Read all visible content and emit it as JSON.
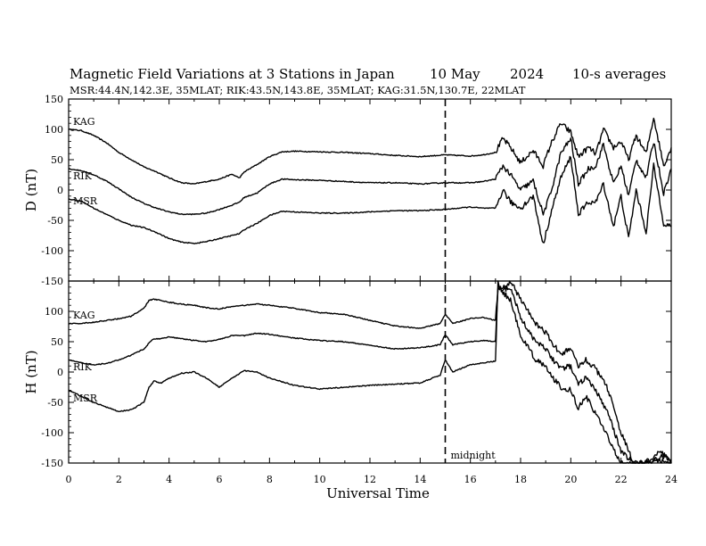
{
  "header": {
    "title": "Magnetic Field Variations at 3 Stations in Japan",
    "date": "10 May",
    "year": "2024",
    "averaging": "10-s averages",
    "stations_line": "MSR:44.4N,142.3E, 35MLAT;  RIK:43.5N,143.8E, 35MLAT;  KAG:31.5N,130.7E, 22MLAT"
  },
  "chart_data": [
    {
      "type": "line",
      "panel": "D",
      "ylabel": "D (nT)",
      "xlabel": "Universal Time",
      "xlim": [
        0,
        24
      ],
      "ylim": [
        -150,
        150
      ],
      "yticks": [
        "150",
        "100",
        "50",
        "0",
        "-50",
        "-100",
        "-150"
      ],
      "x": [
        0,
        0.5,
        1,
        1.5,
        2,
        2.5,
        3,
        3.5,
        4,
        4.5,
        5,
        5.5,
        6,
        6.5,
        6.8,
        7,
        7.5,
        8,
        8.5,
        9,
        10,
        11,
        12,
        13,
        14,
        15,
        16,
        16.5,
        17,
        17.3,
        17.6,
        18,
        18.5,
        18.9,
        19.2,
        19.6,
        20,
        20.3,
        20.7,
        21,
        21.3,
        21.7,
        22,
        22.3,
        22.6,
        23,
        23.3,
        23.7,
        24
      ],
      "series": [
        {
          "name": "KAG",
          "values": [
            100,
            98,
            90,
            78,
            62,
            50,
            38,
            30,
            20,
            12,
            10,
            14,
            18,
            26,
            20,
            30,
            42,
            55,
            63,
            64,
            63,
            62,
            60,
            57,
            55,
            58,
            56,
            58,
            62,
            85,
            70,
            45,
            65,
            40,
            75,
            110,
            95,
            55,
            70,
            60,
            100,
            70,
            80,
            50,
            90,
            60,
            120,
            40,
            70
          ]
        },
        {
          "name": "RIK",
          "values": [
            35,
            32,
            25,
            15,
            2,
            -12,
            -22,
            -30,
            -36,
            -40,
            -40,
            -38,
            -32,
            -25,
            -20,
            -12,
            -5,
            10,
            18,
            17,
            16,
            14,
            12,
            12,
            10,
            12,
            12,
            14,
            18,
            40,
            25,
            0,
            15,
            -40,
            -5,
            60,
            85,
            10,
            35,
            40,
            75,
            10,
            40,
            -10,
            50,
            20,
            80,
            -5,
            35
          ]
        },
        {
          "name": "MSR",
          "values": [
            -15,
            -18,
            -30,
            -40,
            -50,
            -58,
            -62,
            -70,
            -80,
            -86,
            -88,
            -85,
            -80,
            -75,
            -72,
            -65,
            -55,
            -42,
            -35,
            -36,
            -38,
            -38,
            -36,
            -34,
            -34,
            -32,
            -28,
            -30,
            -30,
            0,
            -20,
            -30,
            -10,
            -90,
            -40,
            20,
            55,
            -40,
            -20,
            -20,
            10,
            -60,
            -10,
            -80,
            0,
            -70,
            40,
            -55,
            -60
          ]
        }
      ],
      "series_order_note": ""
    },
    {
      "type": "line",
      "panel": "H",
      "ylabel": "H (nT)",
      "xlabel": "Universal Time",
      "xlim": [
        0,
        24
      ],
      "ylim": [
        -150,
        150
      ],
      "yticks": [
        "150",
        "100",
        "50",
        "0",
        "-50",
        "-100",
        "-150"
      ],
      "xticks": [
        "0",
        "2",
        "4",
        "6",
        "8",
        "10",
        "12",
        "14",
        "16",
        "18",
        "20",
        "22",
        "24"
      ],
      "x": [
        0,
        0.5,
        1,
        1.5,
        2,
        2.5,
        3,
        3.2,
        3.4,
        3.7,
        4,
        4.5,
        5,
        5.5,
        6,
        6.5,
        7,
        7.5,
        8,
        9,
        10,
        11,
        12,
        13,
        14,
        14.8,
        15,
        15.3,
        16,
        16.5,
        17,
        17.1,
        17.3,
        17.6,
        18,
        18.3,
        18.6,
        19,
        19.3,
        19.6,
        20,
        20.3,
        20.6,
        21,
        21.5,
        22,
        22.5,
        22.9,
        23.2,
        23.5,
        23.8,
        24
      ],
      "series": [
        {
          "name": "KAG",
          "values": [
            80,
            80,
            82,
            85,
            88,
            92,
            105,
            118,
            120,
            118,
            115,
            112,
            110,
            106,
            104,
            108,
            110,
            112,
            110,
            105,
            98,
            95,
            85,
            76,
            72,
            80,
            95,
            80,
            88,
            90,
            85,
            140,
            140,
            150,
            120,
            100,
            80,
            65,
            45,
            30,
            40,
            10,
            20,
            5,
            -30,
            -100,
            -150,
            -150,
            -150,
            -140,
            -140,
            -150
          ]
        },
        {
          "name": "RIK",
          "values": [
            20,
            15,
            12,
            14,
            20,
            28,
            38,
            48,
            55,
            55,
            58,
            55,
            52,
            50,
            54,
            60,
            60,
            64,
            62,
            56,
            52,
            50,
            44,
            38,
            40,
            45,
            62,
            45,
            50,
            52,
            50,
            140,
            135,
            140,
            90,
            70,
            50,
            38,
            20,
            5,
            10,
            -20,
            -10,
            -30,
            -70,
            -130,
            -150,
            -150,
            -145,
            -130,
            -140,
            -150
          ]
        },
        {
          "name": "MSR",
          "values": [
            -30,
            -40,
            -50,
            -58,
            -65,
            -62,
            -50,
            -25,
            -15,
            -18,
            -10,
            -2,
            0,
            -10,
            -25,
            -10,
            2,
            0,
            -10,
            -22,
            -28,
            -25,
            -22,
            -20,
            -18,
            -5,
            20,
            0,
            12,
            15,
            18,
            150,
            130,
            120,
            60,
            40,
            20,
            10,
            -10,
            -25,
            -30,
            -60,
            -40,
            -70,
            -110,
            -150,
            -150,
            -150,
            -150,
            -145,
            -150,
            -150
          ]
        }
      ]
    }
  ],
  "annotations": {
    "midnight_label": "midnight",
    "midnight_ut": 15,
    "station_labels": [
      "KAG",
      "RIK",
      "MSR"
    ]
  }
}
